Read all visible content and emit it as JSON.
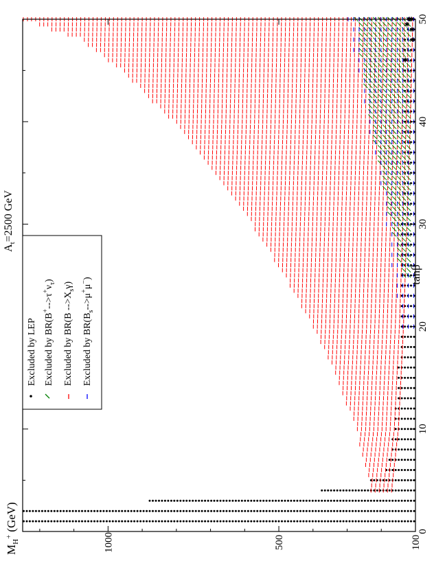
{
  "chart_data": {
    "type": "scatter",
    "orientation": "rotated-90-ccw",
    "title": "A",
    "title_sub": "t",
    "title_rest": "=2500 GeV",
    "xlabel": "tanβ",
    "ylabel_main": "M",
    "ylabel_sub": "H",
    "ylabel_sup": "+",
    "ylabel_unit": "(GeV)",
    "xlim": [
      0,
      50
    ],
    "ylim": [
      100,
      1250
    ],
    "x_ticks": [
      0,
      10,
      20,
      30,
      40,
      50
    ],
    "y_ticks": [
      100,
      500,
      1000
    ],
    "legend_position": "top-left",
    "legend": [
      {
        "symbol": "dot",
        "color": "#000000",
        "label": "Excluded by LEP"
      },
      {
        "symbol": "dash",
        "color": "#008000",
        "label_prefix": "Excluded by BR(B",
        "label_sup": "+",
        "label_mid": "-->τ",
        "label_sup2": "+",
        "label_mid2": "ν",
        "label_sub": "τ",
        "label_suffix": ")"
      },
      {
        "symbol": "dash",
        "color": "#ff0000",
        "label_prefix": "Excluded by BR(B -->X",
        "label_sub": "s",
        "label_suffix": "γ)"
      },
      {
        "symbol": "dash",
        "color": "#0000ff",
        "label_prefix": "Excluded by BR(B",
        "label_sub": "s",
        "label_mid": "-->μ",
        "label_sup": "+",
        "label_mid2": "μ",
        "label_sup2": "−",
        "label_suffix": ")"
      }
    ],
    "regions": {
      "lep": {
        "color": "#000000",
        "dense_bands": [
          {
            "x": [
              1,
              2
            ],
            "ymax": 1250
          },
          {
            "x": [
              2,
              3
            ],
            "ymax": 880
          }
        ],
        "band_upper": [
          [
            1,
            1250
          ],
          [
            2,
            1250
          ],
          [
            3,
            880
          ],
          [
            4,
            380
          ],
          [
            5,
            230
          ],
          [
            6,
            190
          ],
          [
            8,
            175
          ],
          [
            10,
            165
          ],
          [
            15,
            150
          ],
          [
            20,
            145
          ],
          [
            30,
            140
          ],
          [
            40,
            135
          ],
          [
            50,
            130
          ]
        ]
      },
      "bsgamma": {
        "color": "#ff0000",
        "upper": [
          [
            4,
            230
          ],
          [
            6,
            245
          ],
          [
            10,
            275
          ],
          [
            15,
            330
          ],
          [
            20,
            400
          ],
          [
            25,
            485
          ],
          [
            30,
            580
          ],
          [
            35,
            690
          ],
          [
            40,
            810
          ],
          [
            45,
            960
          ],
          [
            48,
            1080
          ],
          [
            50,
            1250
          ]
        ],
        "lower": [
          [
            4,
            170
          ],
          [
            10,
            150
          ],
          [
            20,
            135
          ],
          [
            30,
            125
          ],
          [
            40,
            115
          ],
          [
            50,
            108
          ]
        ]
      },
      "btaunu": {
        "color": "#008000",
        "upper": [
          [
            25,
            140
          ],
          [
            30,
            170
          ],
          [
            35,
            200
          ],
          [
            40,
            230
          ],
          [
            45,
            255
          ],
          [
            50,
            275
          ]
        ],
        "lower": [
          [
            25,
            120
          ],
          [
            30,
            120
          ],
          [
            40,
            120
          ],
          [
            50,
            120
          ]
        ]
      },
      "bsmumu": {
        "color": "#0000ff",
        "upper": [
          [
            20,
            140
          ],
          [
            25,
            165
          ],
          [
            30,
            185
          ],
          [
            35,
            210
          ],
          [
            40,
            240
          ],
          [
            45,
            270
          ],
          [
            50,
            300
          ]
        ],
        "lower": [
          [
            20,
            105
          ],
          [
            50,
            105
          ]
        ]
      },
      "violet_points": {
        "color": "#9400d3",
        "points": [
          [
            46,
            130
          ],
          [
            48,
            108
          ],
          [
            49,
            110
          ],
          [
            50,
            112
          ],
          [
            49.5,
            125
          ],
          [
            50,
            118
          ]
        ]
      }
    }
  }
}
